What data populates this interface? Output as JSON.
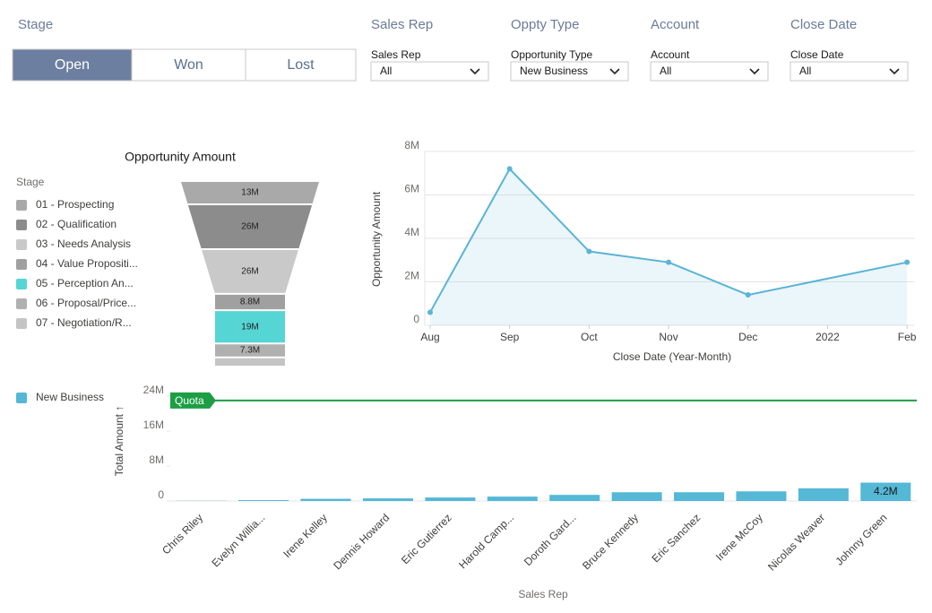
{
  "stage_filter": {
    "title": "Stage",
    "options": [
      "Open",
      "Won",
      "Lost"
    ],
    "selected": "Open"
  },
  "filters": [
    {
      "title": "Sales Rep",
      "label": "Sales Rep",
      "value": "All"
    },
    {
      "title": "Oppty Type",
      "label": "Opportunity Type",
      "value": "New Business"
    },
    {
      "title": "Account",
      "label": "Account",
      "value": "All"
    },
    {
      "title": "Close Date",
      "label": "Close Date",
      "value": "All"
    }
  ],
  "chart_data": [
    {
      "type": "funnel",
      "title": "Opportunity Amount",
      "legend_title": "Stage",
      "categories": [
        "01 - Prospecting",
        "02 - Qualification",
        "03 - Needs Analysis",
        "04 - Value Propositi...",
        "05 - Perception An...",
        "06 - Proposal/Price...",
        "07 - Negotiation/R..."
      ],
      "values": [
        13,
        26,
        26,
        8.8,
        19,
        7.3,
        4.5
      ],
      "value_labels": [
        "13M",
        "26M",
        "26M",
        "8.8M",
        "19M",
        "7.3M",
        null
      ],
      "colors": [
        "#a9a9a9",
        "#8c8c8c",
        "#c9c9c9",
        "#a0a0a0",
        "#56d5d5",
        "#b0b0b0",
        "#c4c4c4"
      ]
    },
    {
      "type": "line",
      "x": [
        0,
        1,
        2,
        3,
        4,
        6
      ],
      "values": [
        0.6,
        7.2,
        3.4,
        2.9,
        1.4,
        2.9
      ],
      "xlim": [
        0,
        6.1
      ],
      "xticks": [
        {
          "value": 0,
          "label": "Aug"
        },
        {
          "value": 1,
          "label": "Sep"
        },
        {
          "value": 2,
          "label": "Oct"
        },
        {
          "value": 3,
          "label": "Nov"
        },
        {
          "value": 4,
          "label": "Dec"
        },
        {
          "value": 5,
          "label": "2022"
        },
        {
          "value": 6,
          "label": "Feb"
        }
      ],
      "ylim": [
        0,
        8
      ],
      "yticks": [
        0,
        {
          "value": 2,
          "label": "2M"
        },
        {
          "value": 4,
          "label": "4M"
        },
        {
          "value": 6,
          "label": "6M"
        },
        {
          "value": 8,
          "label": "8M"
        }
      ],
      "xlabel": "Close Date (Year-Month)",
      "ylabel": "Opportunity Amount",
      "color": "#5ab4d6",
      "area": true,
      "grid": true
    },
    {
      "type": "bar",
      "categories": [
        "Chris Riley",
        "Evelyn Willia...",
        "Irene Kelley",
        "Dennis Howard",
        "Eric Gutierrez",
        "Harold Camp...",
        "Doroth Gard...",
        "Bruce Kennedy",
        "Eric Sanchez",
        "Irene McCoy",
        "Nicolas Weaver",
        "Johnny Green"
      ],
      "series": [
        {
          "name": "New Business",
          "color": "#54b8d6",
          "values": [
            0.05,
            0.2,
            0.5,
            0.6,
            0.8,
            1.0,
            1.4,
            2.0,
            2.0,
            2.2,
            2.9,
            4.2
          ],
          "value_labels": [
            null,
            null,
            null,
            null,
            null,
            null,
            null,
            null,
            null,
            null,
            null,
            "4.2M"
          ]
        }
      ],
      "ylim": [
        0,
        24.5
      ],
      "yticks": [
        0,
        {
          "value": 8,
          "label": "8M"
        },
        {
          "value": 16,
          "label": "16M"
        },
        {
          "value": 24,
          "label": "24M"
        }
      ],
      "ylabel": "Total Amount ↑",
      "xlabel": "Sales Rep",
      "annotations": [
        {
          "label": "Quota",
          "value": 23,
          "color": "#1c9e45"
        }
      ]
    }
  ]
}
